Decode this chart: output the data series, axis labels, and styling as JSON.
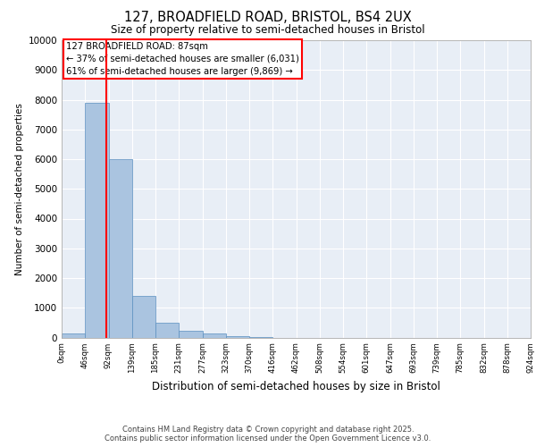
{
  "title_line1": "127, BROADFIELD ROAD, BRISTOL, BS4 2UX",
  "title_line2": "Size of property relative to semi-detached houses in Bristol",
  "xlabel": "Distribution of semi-detached houses by size in Bristol",
  "ylabel": "Number of semi-detached properties",
  "annotation_title": "127 BROADFIELD ROAD: 87sqm",
  "annotation_line2": "← 37% of semi-detached houses are smaller (6,031)",
  "annotation_line3": "61% of semi-detached houses are larger (9,869) →",
  "property_size": 87,
  "bar_values": [
    150,
    7900,
    6000,
    1400,
    500,
    230,
    140,
    60,
    10,
    0,
    0,
    0,
    0,
    0,
    0,
    0,
    0,
    0,
    0,
    0
  ],
  "bin_labels": [
    "0sqm",
    "46sqm",
    "92sqm",
    "139sqm",
    "185sqm",
    "231sqm",
    "277sqm",
    "323sqm",
    "370sqm",
    "416sqm",
    "462sqm",
    "508sqm",
    "554sqm",
    "601sqm",
    "647sqm",
    "693sqm",
    "739sqm",
    "785sqm",
    "832sqm",
    "878sqm",
    "924sqm"
  ],
  "bar_color": "#aac4e0",
  "bar_edge_color": "#5a8fc0",
  "vline_color": "red",
  "vline_x": 1.9,
  "annotation_box_color": "red",
  "annotation_fill": "white",
  "background_color": "#e8eef6",
  "ylim": [
    0,
    10000
  ],
  "yticks": [
    0,
    1000,
    2000,
    3000,
    4000,
    5000,
    6000,
    7000,
    8000,
    9000,
    10000
  ],
  "footer_line1": "Contains HM Land Registry data © Crown copyright and database right 2025.",
  "footer_line2": "Contains public sector information licensed under the Open Government Licence v3.0."
}
